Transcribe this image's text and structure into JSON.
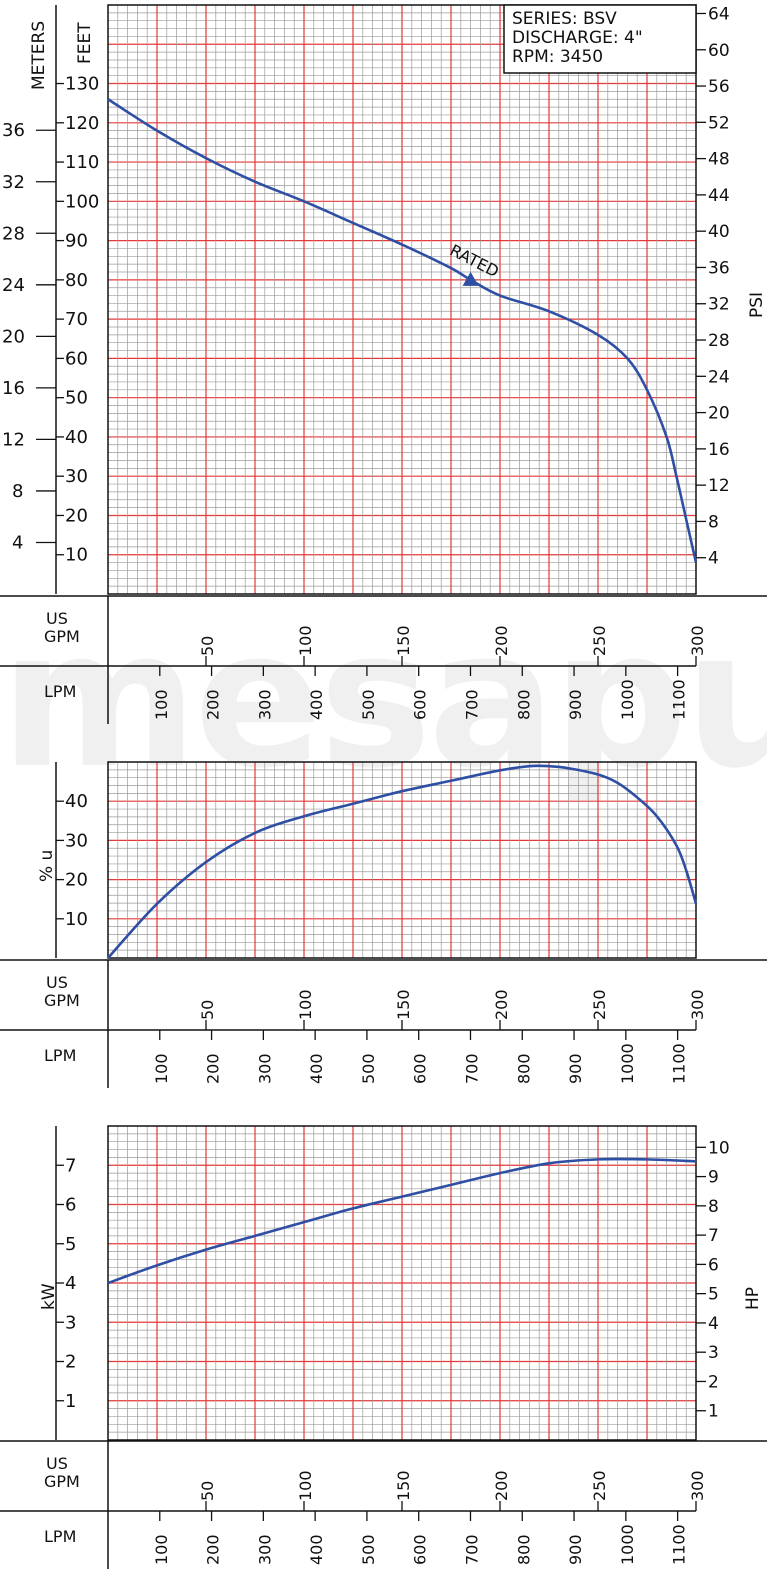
{
  "watermark": "mesapu",
  "colors": {
    "grid_major": "#e23a3a",
    "grid_minor": "#9a9a9a",
    "curve": "#2e4fa3",
    "axis": "#111111"
  },
  "chart_data": [
    {
      "type": "line",
      "panel": "head",
      "info_box": [
        "SERIES:  BSV",
        "DISCHARGE:  4\"",
        "RPM:  3450"
      ],
      "left_outer_label": "METERS",
      "left_inner_label": "FEET",
      "right_label": "PSI",
      "meters_ticks": [
        4,
        8,
        12,
        16,
        20,
        24,
        28,
        32,
        36
      ],
      "feet_ticks": [
        10,
        20,
        30,
        40,
        50,
        60,
        70,
        80,
        90,
        100,
        110,
        120,
        130
      ],
      "psi_ticks": [
        4,
        8,
        12,
        16,
        20,
        24,
        28,
        32,
        36,
        40,
        44,
        48,
        52,
        56,
        60,
        64
      ],
      "xlim": [
        0,
        300
      ],
      "ylim": [
        0,
        150
      ],
      "x": [
        0,
        25,
        50,
        75,
        100,
        125,
        150,
        175,
        185,
        200,
        225,
        250,
        265,
        275,
        285,
        290,
        295,
        300
      ],
      "y": [
        126,
        118,
        111,
        105,
        100,
        94.5,
        89,
        83,
        80,
        76,
        72,
        66,
        60,
        52,
        40,
        30,
        19,
        8
      ],
      "annotations": [
        {
          "text": "RATED",
          "x": 185,
          "y": 80
        }
      ]
    },
    {
      "type": "line",
      "panel": "efficiency",
      "ylabel": "% u",
      "y_ticks": [
        10,
        20,
        30,
        40
      ],
      "xlim": [
        0,
        300
      ],
      "ylim": [
        0,
        47
      ],
      "x": [
        0,
        25,
        50,
        75,
        100,
        125,
        150,
        175,
        200,
        215,
        225,
        235,
        250,
        260,
        270,
        280,
        290,
        295,
        300
      ],
      "y": [
        0,
        13,
        23,
        30,
        34,
        37,
        40,
        42.5,
        45,
        46,
        46,
        45.5,
        44,
        42,
        38.5,
        34,
        27,
        21,
        13
      ]
    },
    {
      "type": "line",
      "panel": "power",
      "left_label": "kW",
      "right_label": "HP",
      "kw_ticks": [
        1,
        2,
        3,
        4,
        5,
        6,
        7
      ],
      "hp_ticks": [
        1,
        2,
        3,
        4,
        5,
        6,
        7,
        8,
        9,
        10
      ],
      "xlim": [
        0,
        300
      ],
      "ylim": [
        0,
        8
      ],
      "x": [
        0,
        25,
        50,
        75,
        100,
        125,
        150,
        175,
        200,
        225,
        250,
        275,
        300
      ],
      "y": [
        4,
        4.45,
        4.85,
        5.2,
        5.55,
        5.9,
        6.2,
        6.5,
        6.8,
        7.05,
        7.15,
        7.15,
        7.1
      ]
    }
  ],
  "x_axis": {
    "gpm_label": [
      "US",
      "GPM"
    ],
    "lpm_label": "LPM",
    "gpm_ticks": [
      50,
      100,
      150,
      200,
      250,
      300
    ],
    "lpm_ticks": [
      100,
      200,
      300,
      400,
      500,
      600,
      700,
      800,
      900,
      1000,
      1100
    ]
  }
}
